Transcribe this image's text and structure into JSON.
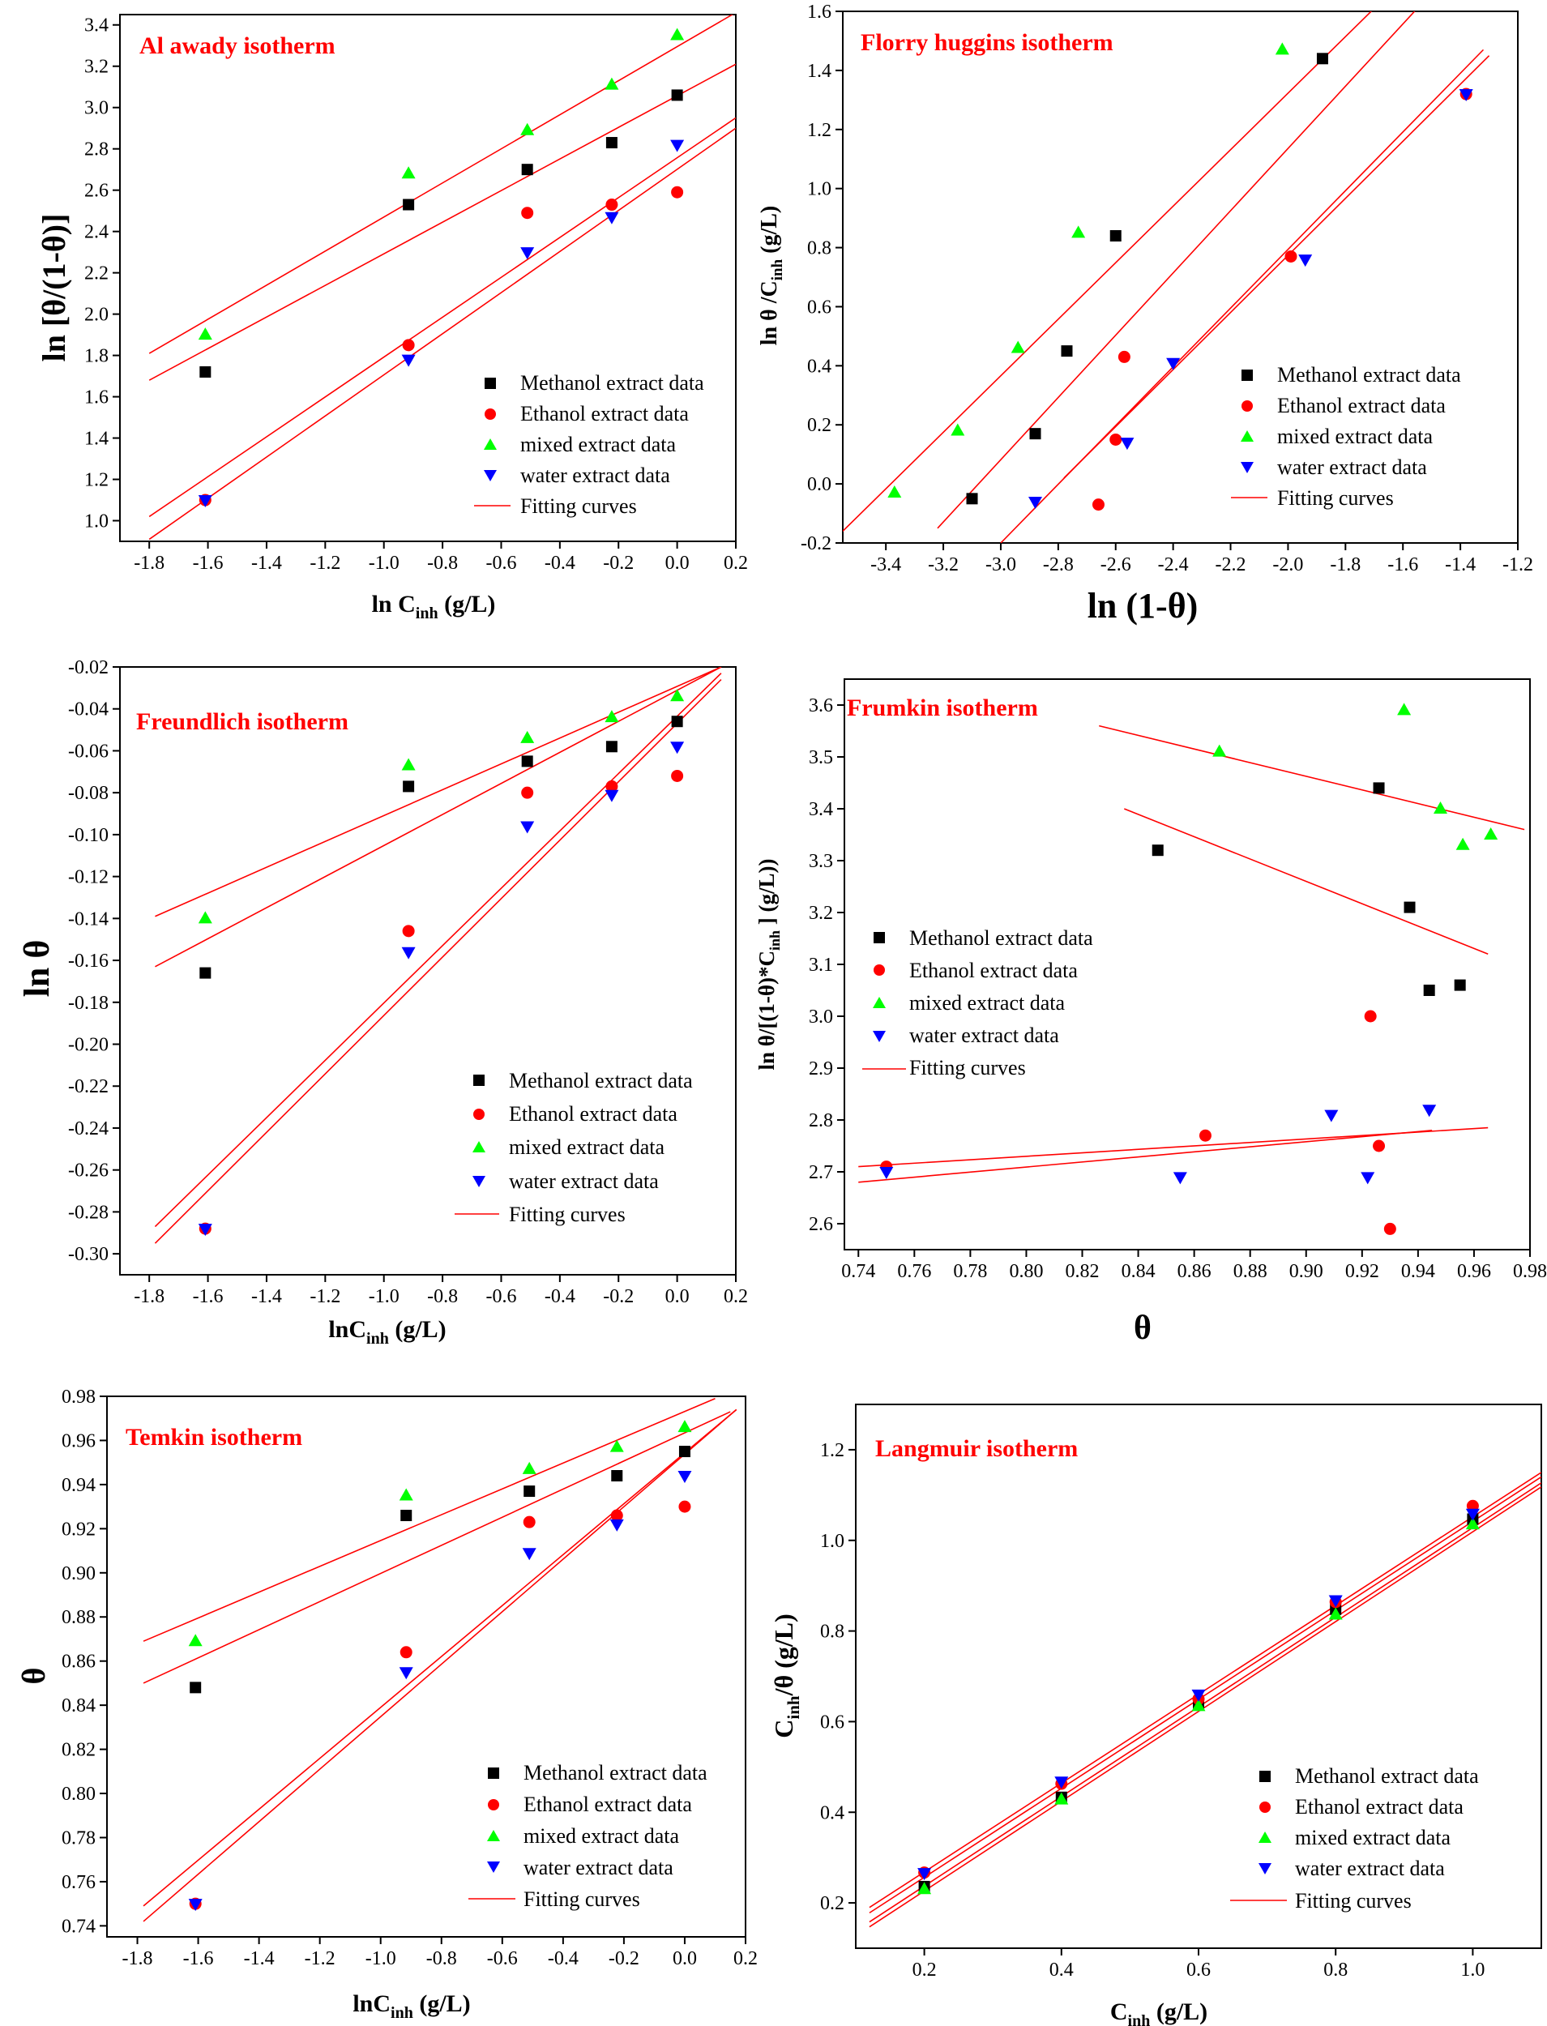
{
  "legend_labels": {
    "methanol": "Methanol extract data",
    "ethanol": "Ethanol extract data",
    "mixed": "mixed extract data",
    "water": "water extract data",
    "fit": "Fitting curves"
  },
  "colors": {
    "methanol": "#000000",
    "ethanol": "#ff0000",
    "mixed": "#00ff00",
    "water": "#0000ff",
    "fit": "#ff0000",
    "title": "#ff0000"
  },
  "chart_data": [
    {
      "id": "alawady",
      "type": "scatter",
      "title": "Al awady isotherm",
      "xlabel": "ln C_inh (g/L)",
      "ylabel": "ln [θ/(1-θ)]",
      "xlim": [
        -1.9,
        0.2
      ],
      "ylim": [
        0.9,
        3.45
      ],
      "xticks": [
        -1.8,
        -1.6,
        -1.4,
        -1.2,
        -1.0,
        -0.8,
        -0.6,
        -0.4,
        -0.2,
        0.0,
        0.2
      ],
      "yticks": [
        1.0,
        1.2,
        1.4,
        1.6,
        1.8,
        2.0,
        2.2,
        2.4,
        2.6,
        2.8,
        3.0,
        3.2,
        3.4
      ],
      "x": [
        -1.609,
        -0.916,
        -0.511,
        -0.223,
        0.0
      ],
      "series": [
        {
          "key": "methanol",
          "name": "Methanol extract data",
          "marker": "square",
          "values": [
            1.72,
            2.53,
            2.7,
            2.83,
            3.06
          ]
        },
        {
          "key": "ethanol",
          "name": "Ethanol extract data",
          "marker": "circle",
          "values": [
            1.1,
            1.85,
            2.49,
            2.53,
            2.59
          ]
        },
        {
          "key": "mixed",
          "name": "mixed extract data",
          "marker": "triangle-up",
          "values": [
            1.9,
            2.68,
            2.89,
            3.11,
            3.35
          ]
        },
        {
          "key": "water",
          "name": "water extract data",
          "marker": "triangle-down",
          "values": [
            1.1,
            1.78,
            2.3,
            2.47,
            2.82
          ]
        }
      ],
      "fits": [
        {
          "x": [
            -1.8,
            0.2
          ],
          "y": [
            1.81,
            3.46
          ]
        },
        {
          "x": [
            -1.8,
            0.2
          ],
          "y": [
            1.68,
            3.21
          ]
        },
        {
          "x": [
            -1.8,
            0.2
          ],
          "y": [
            1.02,
            2.95
          ]
        },
        {
          "x": [
            -1.8,
            0.2
          ],
          "y": [
            0.91,
            2.9
          ]
        }
      ],
      "legend_position": "bottom-right"
    },
    {
      "id": "flory",
      "type": "scatter",
      "title": "Florry huggins isotherm",
      "xlabel": "ln (1-θ)",
      "ylabel": "ln θ /C_inh (g/L)",
      "xlim": [
        -3.55,
        -1.2
      ],
      "ylim": [
        -0.2,
        1.6
      ],
      "xticks": [
        -3.4,
        -3.2,
        -3.0,
        -2.8,
        -2.6,
        -2.4,
        -2.2,
        -2.0,
        -1.8,
        -1.6,
        -1.4,
        -1.2
      ],
      "yticks": [
        -0.2,
        0.0,
        0.2,
        0.4,
        0.6,
        0.8,
        1.0,
        1.2,
        1.4,
        1.6
      ],
      "series": [
        {
          "key": "methanol",
          "name": "Methanol extract data",
          "marker": "square",
          "x": [
            -3.1,
            -2.88,
            -2.77,
            -2.6,
            -1.88
          ],
          "values": [
            -0.05,
            0.17,
            0.45,
            0.84,
            1.44
          ]
        },
        {
          "key": "ethanol",
          "name": "Ethanol extract data",
          "marker": "circle",
          "x": [
            -2.66,
            -2.6,
            -2.57,
            -1.99,
            -1.38
          ],
          "values": [
            -0.07,
            0.15,
            0.43,
            0.77,
            1.32
          ]
        },
        {
          "key": "mixed",
          "name": "mixed extract data",
          "marker": "triangle-up",
          "x": [
            -3.37,
            -3.15,
            -2.94,
            -2.73,
            -2.02
          ],
          "values": [
            -0.03,
            0.18,
            0.46,
            0.85,
            1.47
          ]
        },
        {
          "key": "water",
          "name": "water extract data",
          "marker": "triangle-down",
          "x": [
            -2.88,
            -2.56,
            -2.4,
            -1.94,
            -1.38
          ],
          "values": [
            -0.06,
            0.14,
            0.41,
            0.76,
            1.32
          ]
        }
      ],
      "fits": [
        {
          "x": [
            -3.55,
            -1.7
          ],
          "y": [
            -0.16,
            1.61
          ]
        },
        {
          "x": [
            -3.22,
            -1.55
          ],
          "y": [
            -0.15,
            1.61
          ]
        },
        {
          "x": [
            -3.0,
            -1.32
          ],
          "y": [
            -0.2,
            1.47
          ]
        },
        {
          "x": [
            -2.78,
            -1.3
          ],
          "y": [
            0.02,
            1.45
          ]
        }
      ],
      "legend_position": "bottom-right"
    },
    {
      "id": "freundlich",
      "type": "scatter",
      "title": "Freundlich isotherm",
      "xlabel": "lnC_inh (g/L)",
      "ylabel": "ln θ",
      "xlim": [
        -1.9,
        0.2
      ],
      "ylim": [
        -0.31,
        -0.02
      ],
      "xticks": [
        -1.8,
        -1.6,
        -1.4,
        -1.2,
        -1.0,
        -0.8,
        -0.6,
        -0.4,
        -0.2,
        0.0,
        0.2
      ],
      "yticks": [
        -0.3,
        -0.28,
        -0.26,
        -0.24,
        -0.22,
        -0.2,
        -0.18,
        -0.16,
        -0.14,
        -0.12,
        -0.1,
        -0.08,
        -0.06,
        -0.04,
        -0.02
      ],
      "x": [
        -1.609,
        -0.916,
        -0.511,
        -0.223,
        0.0
      ],
      "series": [
        {
          "key": "methanol",
          "name": "Methanol extract data",
          "marker": "square",
          "values": [
            -0.166,
            -0.077,
            -0.065,
            -0.058,
            -0.046
          ]
        },
        {
          "key": "ethanol",
          "name": "Ethanol extract data",
          "marker": "circle",
          "values": [
            -0.288,
            -0.146,
            -0.08,
            -0.077,
            -0.072
          ]
        },
        {
          "key": "mixed",
          "name": "mixed extract data",
          "marker": "triangle-up",
          "values": [
            -0.14,
            -0.067,
            -0.054,
            -0.044,
            -0.034
          ]
        },
        {
          "key": "water",
          "name": "water extract data",
          "marker": "triangle-down",
          "values": [
            -0.288,
            -0.156,
            -0.096,
            -0.081,
            -0.058
          ]
        }
      ],
      "fits": [
        {
          "x": [
            -1.78,
            0.15
          ],
          "y": [
            -0.139,
            -0.02
          ]
        },
        {
          "x": [
            -1.78,
            0.15
          ],
          "y": [
            -0.163,
            -0.02
          ]
        },
        {
          "x": [
            -1.78,
            0.15
          ],
          "y": [
            -0.287,
            -0.023
          ]
        },
        {
          "x": [
            -1.78,
            0.15
          ],
          "y": [
            -0.295,
            -0.026
          ]
        }
      ],
      "legend_position": "bottom-right"
    },
    {
      "id": "frumkin",
      "type": "scatter",
      "title": "Frumkin isotherm",
      "xlabel": "θ",
      "ylabel": "ln θ/[(1-θ)*C_inh ] (g/L))",
      "xlim": [
        0.735,
        0.98
      ],
      "ylim": [
        2.55,
        3.65
      ],
      "xticks": [
        0.74,
        0.76,
        0.78,
        0.8,
        0.82,
        0.84,
        0.86,
        0.88,
        0.9,
        0.92,
        0.94,
        0.96,
        0.98
      ],
      "xtick_labels": [
        "0.74",
        "0.76",
        "0.78",
        "0.80",
        "0.82",
        "0.84",
        "0.86",
        "0.88",
        "0.90",
        "0.92",
        "0.94",
        "0.96",
        "0.98"
      ],
      "yticks": [
        2.6,
        2.7,
        2.8,
        2.9,
        3.0,
        3.1,
        3.2,
        3.3,
        3.4,
        3.5,
        3.6
      ],
      "series": [
        {
          "key": "methanol",
          "name": "Methanol extract data",
          "marker": "square",
          "x": [
            0.847,
            0.926,
            0.937,
            0.944,
            0.955
          ],
          "values": [
            3.32,
            3.44,
            3.21,
            3.05,
            3.06
          ]
        },
        {
          "key": "ethanol",
          "name": "Ethanol extract data",
          "marker": "circle",
          "x": [
            0.75,
            0.864,
            0.923,
            0.926,
            0.93
          ],
          "values": [
            2.71,
            2.77,
            3.0,
            2.75,
            2.59
          ]
        },
        {
          "key": "mixed",
          "name": "mixed extract data",
          "marker": "triangle-up",
          "x": [
            0.869,
            0.935,
            0.948,
            0.956,
            0.966
          ],
          "values": [
            3.51,
            3.59,
            3.4,
            3.33,
            3.35
          ]
        },
        {
          "key": "water",
          "name": "water extract data",
          "marker": "triangle-down",
          "x": [
            0.75,
            0.855,
            0.909,
            0.922,
            0.944
          ],
          "values": [
            2.7,
            2.69,
            2.81,
            2.69,
            2.82
          ]
        }
      ],
      "fits": [
        {
          "x": [
            0.826,
            0.978
          ],
          "y": [
            3.56,
            3.36
          ]
        },
        {
          "x": [
            0.835,
            0.965
          ],
          "y": [
            3.4,
            3.12
          ]
        },
        {
          "x": [
            0.74,
            0.965
          ],
          "y": [
            2.71,
            2.785
          ]
        },
        {
          "x": [
            0.74,
            0.945
          ],
          "y": [
            2.68,
            2.78
          ]
        }
      ],
      "legend_position": "middle-left"
    },
    {
      "id": "temkin",
      "type": "scatter",
      "title": "Temkin isotherm",
      "xlabel": "lnC_inh (g/L)",
      "ylabel": "θ",
      "xlim": [
        -1.9,
        0.2
      ],
      "ylim": [
        0.735,
        0.98
      ],
      "xticks": [
        -1.8,
        -1.6,
        -1.4,
        -1.2,
        -1.0,
        -0.8,
        -0.6,
        -0.4,
        -0.2,
        0.0,
        0.2
      ],
      "yticks": [
        0.74,
        0.76,
        0.78,
        0.8,
        0.82,
        0.84,
        0.86,
        0.88,
        0.9,
        0.92,
        0.94,
        0.96,
        0.98
      ],
      "x": [
        -1.609,
        -0.916,
        -0.511,
        -0.223,
        0.0
      ],
      "series": [
        {
          "key": "methanol",
          "name": "Methanol extract data",
          "marker": "square",
          "values": [
            0.848,
            0.926,
            0.937,
            0.944,
            0.955
          ]
        },
        {
          "key": "ethanol",
          "name": "Ethanol extract data",
          "marker": "circle",
          "values": [
            0.75,
            0.864,
            0.923,
            0.926,
            0.93
          ]
        },
        {
          "key": "mixed",
          "name": "mixed extract data",
          "marker": "triangle-up",
          "values": [
            0.869,
            0.935,
            0.947,
            0.957,
            0.966
          ]
        },
        {
          "key": "water",
          "name": "water extract data",
          "marker": "triangle-down",
          "values": [
            0.75,
            0.855,
            0.909,
            0.922,
            0.944
          ]
        }
      ],
      "fits": [
        {
          "x": [
            -1.78,
            0.1
          ],
          "y": [
            0.869,
            0.979
          ]
        },
        {
          "x": [
            -1.78,
            0.15
          ],
          "y": [
            0.85,
            0.973
          ]
        },
        {
          "x": [
            -1.78,
            0.17
          ],
          "y": [
            0.749,
            0.974
          ]
        },
        {
          "x": [
            -1.78,
            0.17
          ],
          "y": [
            0.742,
            0.974
          ]
        }
      ],
      "legend_position": "bottom-right"
    },
    {
      "id": "langmuir",
      "type": "scatter",
      "title": "Langmuir isotherm",
      "xlabel": "C_inh (g/L)",
      "ylabel": "C_inh/θ (g/L)",
      "xlim": [
        0.1,
        1.1
      ],
      "ylim": [
        0.1,
        1.3
      ],
      "xticks": [
        0.2,
        0.4,
        0.6,
        0.8,
        1.0
      ],
      "yticks": [
        0.2,
        0.4,
        0.6,
        0.8,
        1.0,
        1.2
      ],
      "x": [
        0.2,
        0.4,
        0.6,
        0.8,
        1.0
      ],
      "series": [
        {
          "key": "methanol",
          "name": "Methanol extract data",
          "marker": "square",
          "values": [
            0.236,
            0.433,
            0.641,
            0.848,
            1.047
          ]
        },
        {
          "key": "ethanol",
          "name": "Ethanol extract data",
          "marker": "circle",
          "values": [
            0.267,
            0.463,
            0.65,
            0.864,
            1.076
          ]
        },
        {
          "key": "mixed",
          "name": "mixed extract data",
          "marker": "triangle-up",
          "values": [
            0.23,
            0.428,
            0.634,
            0.836,
            1.035
          ]
        },
        {
          "key": "water",
          "name": "water extract data",
          "marker": "triangle-down",
          "values": [
            0.266,
            0.468,
            0.66,
            0.868,
            1.059
          ]
        }
      ],
      "fits": [
        {
          "x": [
            0.12,
            1.1
          ],
          "y": [
            0.19,
            1.15
          ]
        },
        {
          "x": [
            0.12,
            1.1
          ],
          "y": [
            0.178,
            1.14
          ]
        },
        {
          "x": [
            0.12,
            1.1
          ],
          "y": [
            0.158,
            1.127
          ]
        },
        {
          "x": [
            0.12,
            1.1
          ],
          "y": [
            0.147,
            1.118
          ]
        }
      ],
      "legend_position": "bottom-right"
    }
  ]
}
